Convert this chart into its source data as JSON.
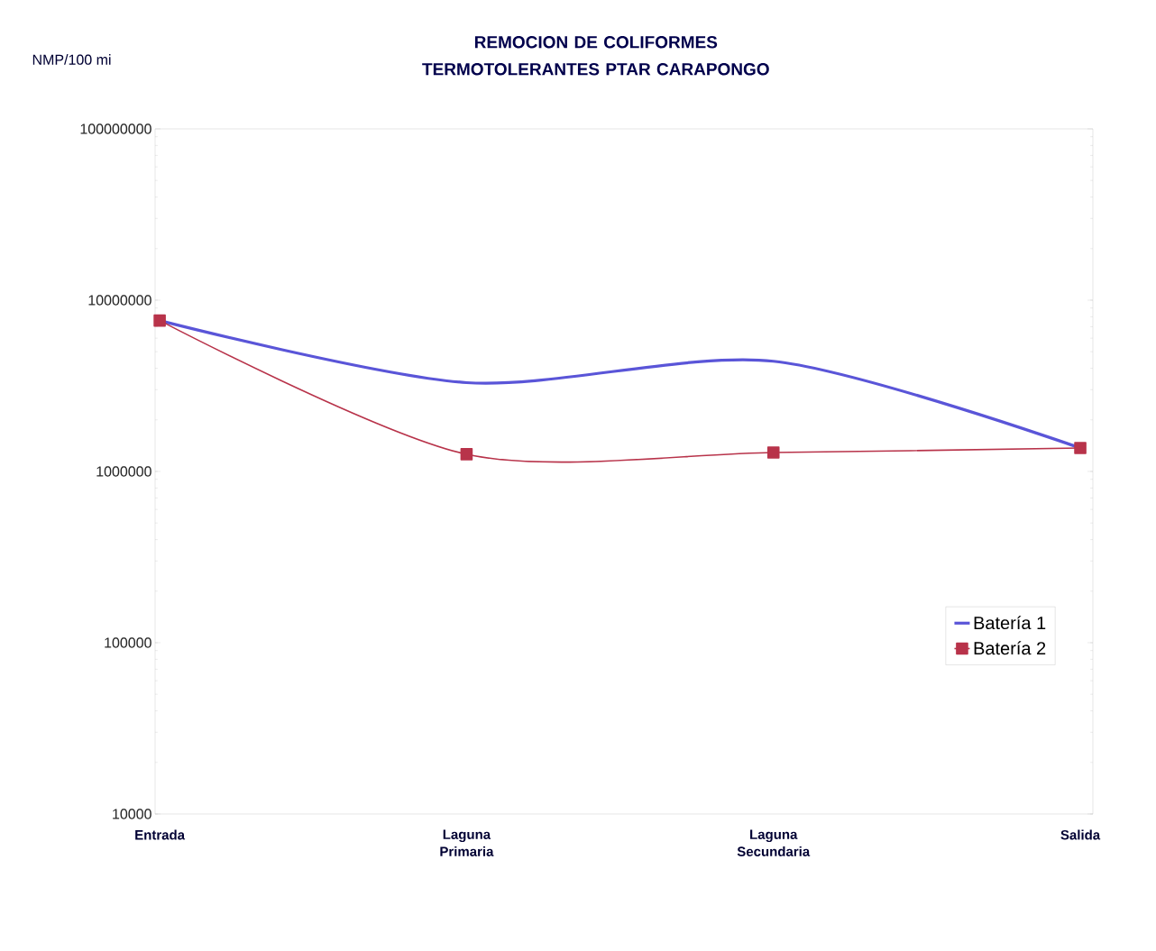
{
  "chart_data": {
    "type": "line",
    "title": "REMOCION DE COLIFORMES TERMOTOLERANTES PTAR CARAPONGO",
    "ylabel": "NMP/100 mi",
    "categories": [
      "Entrada",
      "Laguna Primaria",
      "Laguna Secundaria",
      "Salida"
    ],
    "series": [
      {
        "name": "Batería 1",
        "color": "#5a55d8",
        "marker": "none",
        "values": [
          7600000,
          3300000,
          4400000,
          1370000
        ]
      },
      {
        "name": "Batería 2",
        "color": "#b8334a",
        "marker": "square",
        "values": [
          7600000,
          1260000,
          1290000,
          1370000
        ]
      }
    ],
    "log": "y",
    "ylim": [
      10000,
      100000000
    ],
    "yticks": [
      10000,
      100000,
      1000000,
      10000000,
      100000000
    ],
    "legend": "right"
  }
}
